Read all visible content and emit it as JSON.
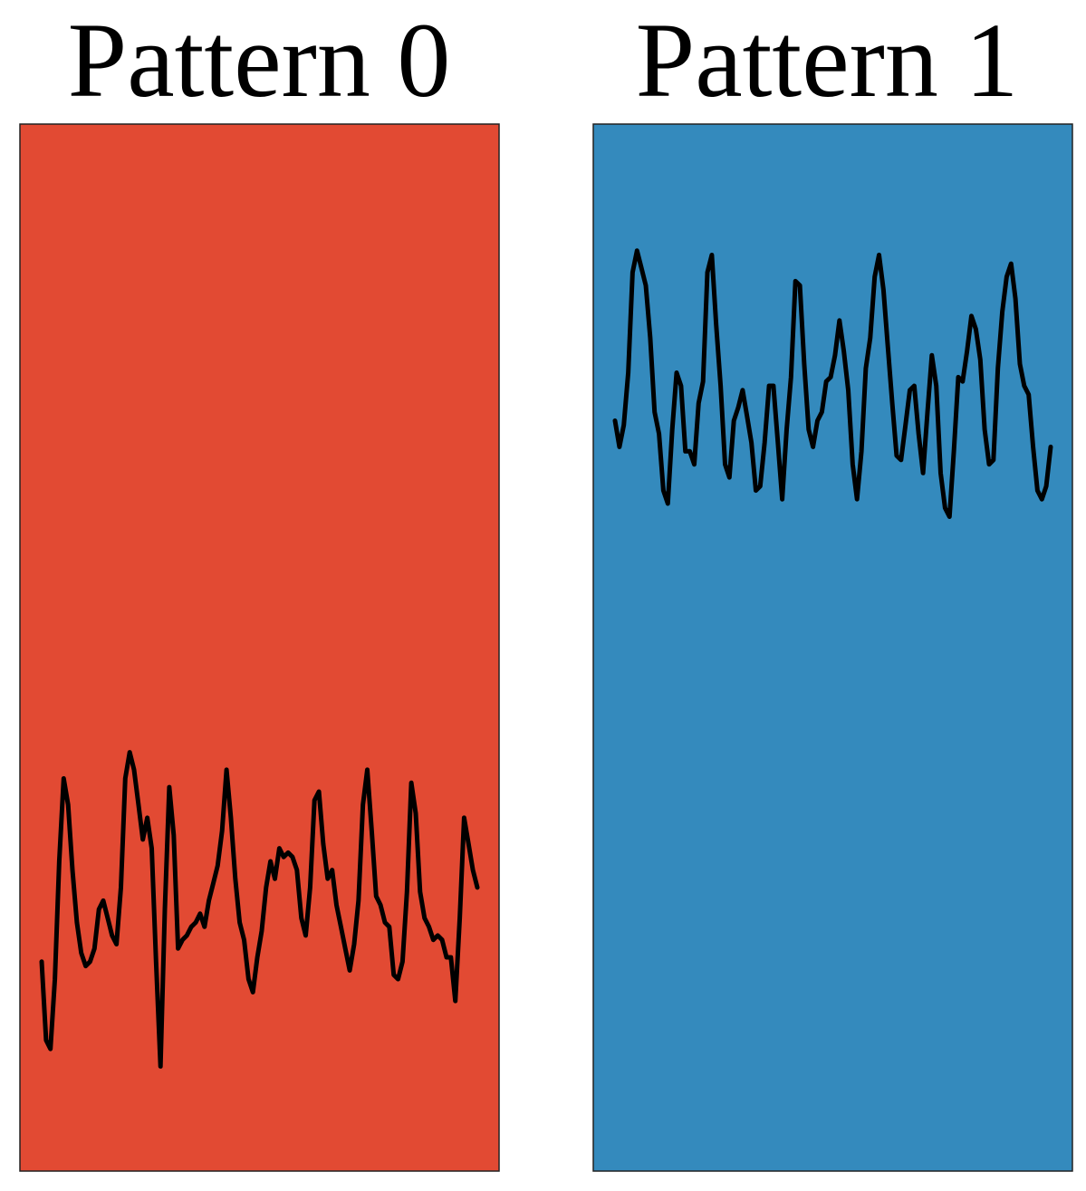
{
  "chart_data": [
    {
      "type": "line",
      "title": "Pattern 0",
      "background_color": "#e24a33",
      "line_color": "#000000",
      "axes_visible": false,
      "xlim": [
        0,
        99
      ],
      "ylim": [
        -12,
        12
      ],
      "series": [
        {
          "x": [
            0,
            1,
            2,
            3,
            4,
            5,
            6,
            7,
            8,
            9,
            10,
            11,
            12,
            13,
            14,
            15,
            16,
            17,
            18,
            19,
            20,
            21,
            22,
            23,
            24,
            25,
            26,
            27,
            28,
            29,
            30,
            31,
            32,
            33,
            34,
            35,
            36,
            37,
            38,
            39,
            40,
            41,
            42,
            43,
            44,
            45,
            46,
            47,
            48,
            49,
            50,
            51,
            52,
            53,
            54,
            55,
            56,
            57,
            58,
            59,
            60,
            61,
            62,
            63,
            64,
            65,
            66,
            67,
            68,
            69,
            70,
            71,
            72,
            73,
            74,
            75,
            76,
            77,
            78,
            79,
            80,
            81,
            82,
            83,
            84,
            85,
            86,
            87,
            88,
            89,
            90,
            91,
            92,
            93,
            94,
            95,
            96,
            97,
            98,
            99
          ],
          "values": [
            -7.2,
            -9.0,
            -9.2,
            -7.6,
            -4.9,
            -3.0,
            -3.6,
            -5.1,
            -6.3,
            -7.0,
            -7.3,
            -7.2,
            -6.9,
            -6.0,
            -5.8,
            -6.2,
            -6.6,
            -6.8,
            -5.5,
            -3.0,
            -2.4,
            -2.8,
            -3.6,
            -4.4,
            -3.9,
            -4.6,
            -7.2,
            -9.6,
            -6.0,
            -3.2,
            -4.3,
            -6.9,
            -6.7,
            -6.6,
            -6.4,
            -6.3,
            -6.1,
            -6.4,
            -5.8,
            -5.4,
            -5.0,
            -4.2,
            -2.8,
            -3.9,
            -5.3,
            -6.3,
            -6.7,
            -7.6,
            -7.9,
            -7.1,
            -6.5,
            -5.5,
            -4.9,
            -5.3,
            -4.6,
            -4.8,
            -4.7,
            -4.8,
            -5.1,
            -6.2,
            -6.6,
            -5.5,
            -3.5,
            -3.3,
            -4.5,
            -5.3,
            -5.1,
            -5.9,
            -6.4,
            -6.9,
            -7.4,
            -6.8,
            -5.8,
            -3.6,
            -2.8,
            -4.2,
            -5.7,
            -5.9,
            -6.3,
            -6.4,
            -7.5,
            -7.6,
            -7.2,
            -5.6,
            -3.1,
            -3.8,
            -5.6,
            -6.2,
            -6.4,
            -6.7,
            -6.6,
            -6.7,
            -7.1,
            -7.1,
            -8.1,
            -6.2,
            -3.9,
            -4.5,
            -5.1,
            -5.5
          ]
        }
      ]
    },
    {
      "type": "line",
      "title": "Pattern 1",
      "background_color": "#348abd",
      "line_color": "#000000",
      "axes_visible": false,
      "xlim": [
        0,
        99
      ],
      "ylim": [
        -12,
        12
      ],
      "series": [
        {
          "x": [
            0,
            1,
            2,
            3,
            4,
            5,
            6,
            7,
            8,
            9,
            10,
            11,
            12,
            13,
            14,
            15,
            16,
            17,
            18,
            19,
            20,
            21,
            22,
            23,
            24,
            25,
            26,
            27,
            28,
            29,
            30,
            31,
            32,
            33,
            34,
            35,
            36,
            37,
            38,
            39,
            40,
            41,
            42,
            43,
            44,
            45,
            46,
            47,
            48,
            49,
            50,
            51,
            52,
            53,
            54,
            55,
            56,
            57,
            58,
            59,
            60,
            61,
            62,
            63,
            64,
            65,
            66,
            67,
            68,
            69,
            70,
            71,
            72,
            73,
            74,
            75,
            76,
            77,
            78,
            79,
            80,
            81,
            82,
            83,
            84,
            85,
            86,
            87,
            88,
            89,
            90,
            91,
            92,
            93,
            94,
            95,
            96,
            97,
            98,
            99
          ],
          "values": [
            5.2,
            4.6,
            5.1,
            6.3,
            8.6,
            9.1,
            8.7,
            8.3,
            7.1,
            5.4,
            4.9,
            3.6,
            3.3,
            5.0,
            6.3,
            6.0,
            4.5,
            4.5,
            4.2,
            5.6,
            6.1,
            8.6,
            9.0,
            7.4,
            6.0,
            4.2,
            3.9,
            5.2,
            5.5,
            5.9,
            5.3,
            4.7,
            3.6,
            3.7,
            4.7,
            6.0,
            6.0,
            4.7,
            3.4,
            5.0,
            6.2,
            8.4,
            8.3,
            6.5,
            5.0,
            4.6,
            5.2,
            5.4,
            6.1,
            6.2,
            6.7,
            7.5,
            6.8,
            5.9,
            4.2,
            3.4,
            4.5,
            6.4,
            7.1,
            8.5,
            9.0,
            8.2,
            6.9,
            5.6,
            4.4,
            4.3,
            5.1,
            5.9,
            6.0,
            4.9,
            4.0,
            5.4,
            6.7,
            6.0,
            4.0,
            3.2,
            3.0,
            4.5,
            6.2,
            6.1,
            6.8,
            7.6,
            7.3,
            6.6,
            5.0,
            4.2,
            4.3,
            6.4,
            7.7,
            8.5,
            8.8,
            8.0,
            6.5,
            6.0,
            5.8,
            4.6,
            3.6,
            3.4,
            3.7,
            4.6
          ]
        }
      ]
    }
  ]
}
